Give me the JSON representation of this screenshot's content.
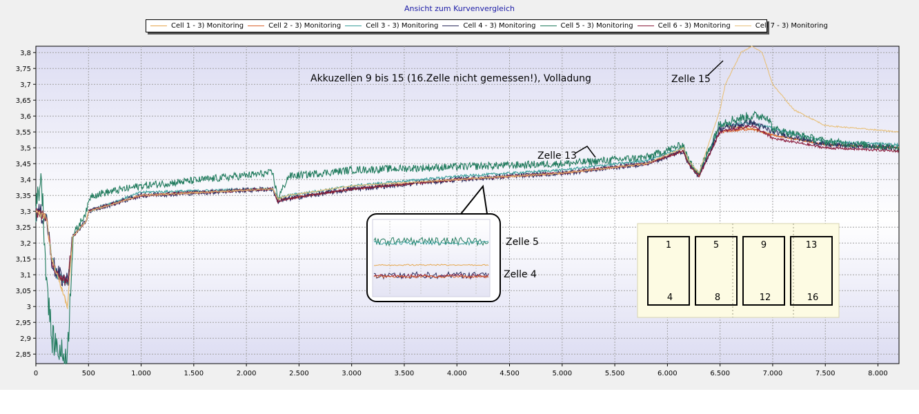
{
  "title": "Ansicht zum Kurvenvergleich",
  "legend": [
    {
      "label": "Cell 1 - 3) Monitoring",
      "color": "#e5a54a"
    },
    {
      "label": "Cell 2 - 3) Monitoring",
      "color": "#d9622b"
    },
    {
      "label": "Cell 3 - 3) Monitoring",
      "color": "#3a9e9a"
    },
    {
      "label": "Cell 4 - 3) Monitoring",
      "color": "#2b2b5e"
    },
    {
      "label": "Cell 5 - 3) Monitoring",
      "color": "#1f7a5c"
    },
    {
      "label": "Cell 6 - 3) Monitoring",
      "color": "#8a1a3a"
    },
    {
      "label": "Cell 7 - 3) Monitoring",
      "color": "#e8c07a"
    }
  ],
  "chart_data": {
    "type": "line",
    "xlim": [
      0,
      8200
    ],
    "ylim": [
      2.82,
      3.82
    ],
    "x_ticks": [
      0,
      500,
      1000,
      1500,
      2000,
      2500,
      3000,
      3500,
      4000,
      4500,
      5000,
      5500,
      6000,
      6500,
      7000,
      7500,
      8000
    ],
    "x_tick_labels": [
      "0",
      "500",
      "1.000",
      "1.500",
      "2.000",
      "2.500",
      "3.000",
      "3.500",
      "4.000",
      "4.500",
      "5.000",
      "5.500",
      "6.000",
      "6.500",
      "7.000",
      "7.500",
      "8.000"
    ],
    "y_ticks": [
      2.85,
      2.9,
      2.95,
      3.0,
      3.05,
      3.1,
      3.15,
      3.2,
      3.25,
      3.3,
      3.35,
      3.4,
      3.45,
      3.5,
      3.55,
      3.6,
      3.65,
      3.7,
      3.75,
      3.8
    ],
    "y_tick_labels": [
      "2,85",
      "2,9",
      "2,95",
      "3",
      "3,05",
      "3,1",
      "3,15",
      "3,2",
      "3,25",
      "3,3",
      "3,35",
      "3,4",
      "3,45",
      "3,5",
      "3,55",
      "3,6",
      "3,65",
      "3,7",
      "3,75",
      "3,8"
    ],
    "grid": true,
    "legend_position": "top",
    "series": [
      {
        "name": "Cell 1 - 3) Monitoring",
        "color": "#e5a54a",
        "x": [
          0,
          100,
          150,
          200,
          300,
          350,
          480,
          500,
          1000,
          2200,
          2250,
          2300,
          2400,
          3000,
          4000,
          5000,
          5800,
          6150,
          6200,
          6300,
          6500,
          6800,
          7000,
          7500,
          8200
        ],
        "y": [
          3.3,
          3.28,
          3.15,
          3.1,
          3.0,
          3.22,
          3.27,
          3.3,
          3.35,
          3.37,
          3.37,
          3.34,
          3.34,
          3.37,
          3.4,
          3.42,
          3.45,
          3.49,
          3.45,
          3.42,
          3.57,
          3.56,
          3.54,
          3.51,
          3.5
        ]
      },
      {
        "name": "Cell 2 - 3) Monitoring",
        "color": "#d9622b",
        "x": [
          0,
          100,
          150,
          200,
          300,
          350,
          480,
          500,
          1000,
          2200,
          2250,
          2300,
          2400,
          3000,
          4000,
          5000,
          5800,
          6150,
          6200,
          6300,
          6500,
          6800,
          7000,
          7500,
          8200
        ],
        "y": [
          3.3,
          3.28,
          3.15,
          3.1,
          3.07,
          3.22,
          3.27,
          3.3,
          3.35,
          3.37,
          3.37,
          3.34,
          3.34,
          3.37,
          3.4,
          3.42,
          3.45,
          3.49,
          3.45,
          3.41,
          3.55,
          3.56,
          3.54,
          3.51,
          3.5
        ]
      },
      {
        "name": "Cell 3 - 3) Monitoring",
        "color": "#3a9e9a",
        "x": [
          0,
          100,
          150,
          200,
          300,
          350,
          480,
          500,
          1000,
          2200,
          2250,
          2300,
          2400,
          3000,
          4000,
          5000,
          5800,
          6150,
          6200,
          6300,
          6500,
          6800,
          7000,
          7500,
          8200
        ],
        "y": [
          3.3,
          3.28,
          3.15,
          3.1,
          3.07,
          3.22,
          3.27,
          3.3,
          3.36,
          3.37,
          3.37,
          3.34,
          3.35,
          3.38,
          3.41,
          3.43,
          3.46,
          3.5,
          3.46,
          3.42,
          3.57,
          3.58,
          3.56,
          3.52,
          3.51
        ]
      },
      {
        "name": "Cell 4 - 3) Monitoring",
        "color": "#2b2b5e",
        "x": [
          0,
          100,
          150,
          200,
          300,
          350,
          480,
          500,
          1000,
          2200,
          2250,
          2300,
          2400,
          3000,
          4000,
          5000,
          5800,
          6150,
          6200,
          6300,
          6500,
          6800,
          7000,
          7500,
          8200
        ],
        "y": [
          3.3,
          3.28,
          3.15,
          3.1,
          3.08,
          3.22,
          3.27,
          3.3,
          3.35,
          3.37,
          3.37,
          3.33,
          3.34,
          3.37,
          3.4,
          3.42,
          3.45,
          3.49,
          3.45,
          3.41,
          3.56,
          3.58,
          3.55,
          3.51,
          3.5
        ]
      },
      {
        "name": "Cell 5 - 3) Monitoring",
        "color": "#1f7a5c",
        "x": [
          0,
          50,
          100,
          150,
          250,
          300,
          350,
          480,
          520,
          1000,
          2200,
          2250,
          2300,
          2400,
          3000,
          4000,
          5000,
          5800,
          6150,
          6200,
          6300,
          6500,
          6800,
          6950,
          7000,
          7500,
          8200
        ],
        "y": [
          3.3,
          3.42,
          3.1,
          2.9,
          2.85,
          2.84,
          3.22,
          3.3,
          3.35,
          3.38,
          3.42,
          3.42,
          3.34,
          3.41,
          3.43,
          3.44,
          3.45,
          3.47,
          3.51,
          3.46,
          3.42,
          3.58,
          3.6,
          3.6,
          3.56,
          3.52,
          3.5
        ]
      },
      {
        "name": "Cell 6 - 3) Monitoring",
        "color": "#8a1a3a",
        "x": [
          0,
          100,
          150,
          200,
          300,
          350,
          480,
          500,
          1000,
          2200,
          2250,
          2300,
          2400,
          3000,
          4000,
          5000,
          5800,
          6150,
          6200,
          6300,
          6500,
          6800,
          7000,
          7500,
          8200
        ],
        "y": [
          3.3,
          3.28,
          3.15,
          3.1,
          3.08,
          3.22,
          3.27,
          3.3,
          3.35,
          3.37,
          3.37,
          3.33,
          3.34,
          3.37,
          3.4,
          3.42,
          3.45,
          3.49,
          3.45,
          3.41,
          3.55,
          3.57,
          3.53,
          3.5,
          3.49
        ]
      },
      {
        "name": "Cell 7 - 3) Monitoring",
        "color": "#e8c07a",
        "x": [
          0,
          100,
          150,
          200,
          300,
          350,
          480,
          500,
          1000,
          2200,
          2250,
          2300,
          2400,
          3000,
          4000,
          5000,
          5800,
          6150,
          6200,
          6300,
          6500,
          6550,
          6700,
          6800,
          6900,
          7000,
          7200,
          7500,
          8200
        ],
        "y": [
          3.3,
          3.28,
          3.15,
          3.1,
          3.0,
          3.22,
          3.27,
          3.3,
          3.35,
          3.37,
          3.37,
          3.34,
          3.35,
          3.38,
          3.4,
          3.42,
          3.45,
          3.5,
          3.46,
          3.42,
          3.62,
          3.7,
          3.8,
          3.82,
          3.8,
          3.7,
          3.62,
          3.57,
          3.55
        ]
      }
    ]
  },
  "annotations": {
    "main_note": "Akkuzellen 9 bis 15 (16.Zelle nicht gemessen!), Volladung",
    "zelle15": "Zelle 15",
    "zelle13": "Zelle 13",
    "zelle5": "Zelle 5",
    "zelle4": "Zelle 4"
  },
  "cell_grid": {
    "columns": [
      {
        "top": "1",
        "bottom": "4"
      },
      {
        "top": "5",
        "bottom": "8"
      },
      {
        "top": "9",
        "bottom": "12"
      },
      {
        "top": "13",
        "bottom": "16"
      }
    ]
  }
}
